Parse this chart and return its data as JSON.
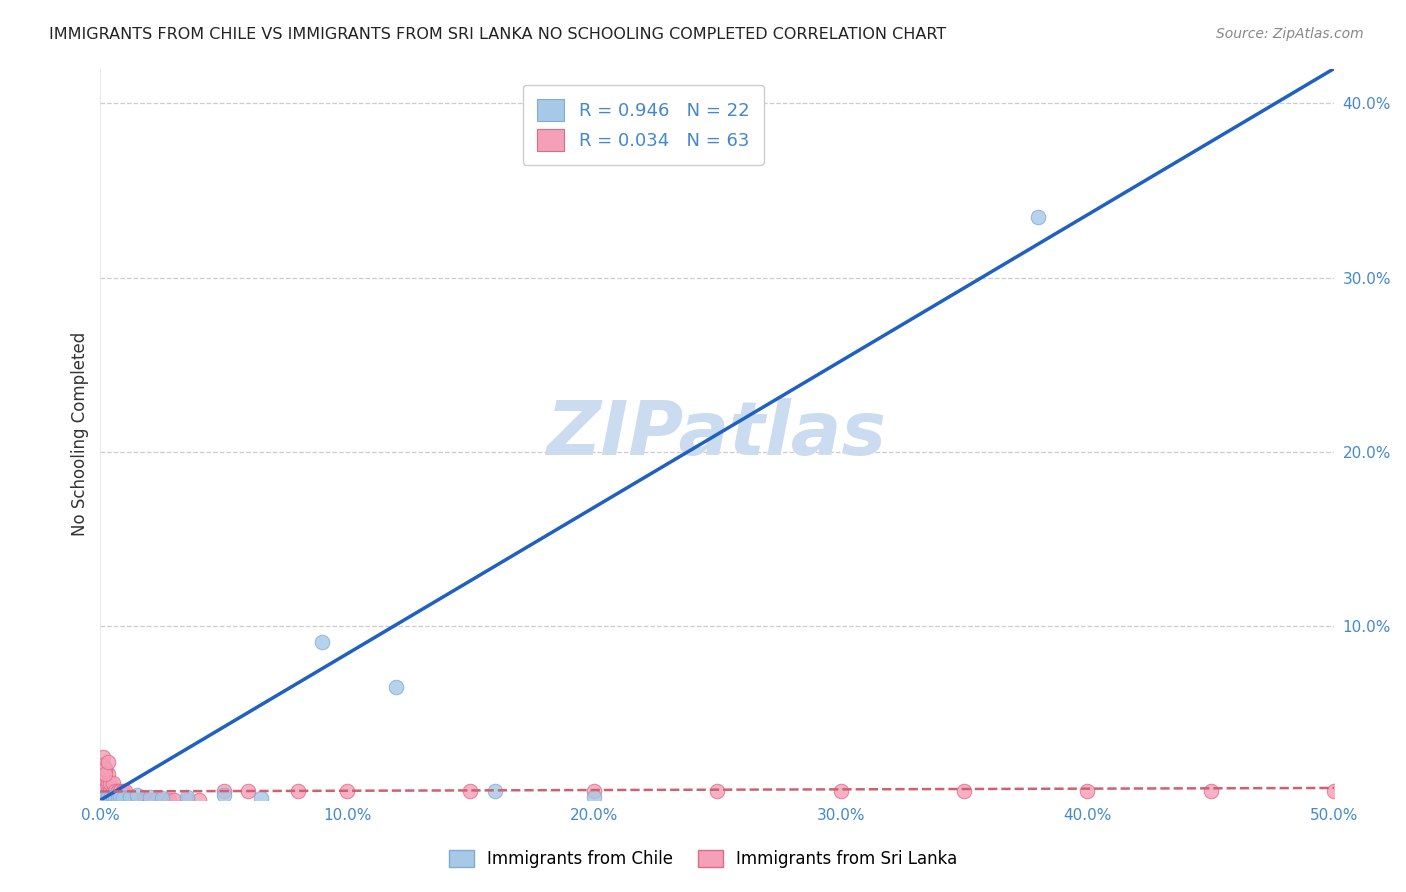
{
  "title": "IMMIGRANTS FROM CHILE VS IMMIGRANTS FROM SRI LANKA NO SCHOOLING COMPLETED CORRELATION CHART",
  "source": "Source: ZipAtlas.com",
  "ylabel": "No Schooling Completed",
  "xlim": [
    0.0,
    0.5
  ],
  "ylim": [
    0.0,
    0.42
  ],
  "xtick_values": [
    0.0,
    0.1,
    0.2,
    0.3,
    0.4,
    0.5
  ],
  "ytick_values": [
    0.1,
    0.2,
    0.3,
    0.4
  ],
  "chile_color": "#a8c8e8",
  "chile_edge_color": "#80aad0",
  "srilanka_color": "#f4a0b8",
  "srilanka_edge_color": "#e06888",
  "chile_R": 0.946,
  "chile_N": 22,
  "srilanka_R": 0.034,
  "srilanka_N": 63,
  "chile_line_color": "#2060c0",
  "srilanka_line_color": "#d06070",
  "watermark": "ZIPatlas",
  "watermark_color": "#ccdcf0",
  "legend_label_chile": "Immigrants from Chile",
  "legend_label_srilanka": "Immigrants from Sri Lanka",
  "tick_color": "#4488cc",
  "chile_x": [
    0.001,
    0.002,
    0.003,
    0.003,
    0.004,
    0.005,
    0.006,
    0.007,
    0.008,
    0.009,
    0.012,
    0.015,
    0.02,
    0.025,
    0.035,
    0.05,
    0.065,
    0.09,
    0.12,
    0.16,
    0.2,
    0.38
  ],
  "chile_y": [
    0.001,
    0.001,
    0.001,
    0.002,
    0.001,
    0.002,
    0.001,
    0.001,
    0.002,
    0.001,
    0.002,
    0.003,
    0.002,
    0.001,
    0.002,
    0.003,
    0.001,
    0.091,
    0.065,
    0.005,
    0.002,
    0.335
  ],
  "srilanka_x": [
    0.001,
    0.001,
    0.001,
    0.001,
    0.001,
    0.002,
    0.002,
    0.002,
    0.002,
    0.002,
    0.003,
    0.003,
    0.003,
    0.003,
    0.004,
    0.004,
    0.004,
    0.005,
    0.005,
    0.005,
    0.006,
    0.006,
    0.007,
    0.007,
    0.008,
    0.008,
    0.009,
    0.009,
    0.01,
    0.01,
    0.011,
    0.012,
    0.013,
    0.014,
    0.015,
    0.016,
    0.017,
    0.018,
    0.019,
    0.02,
    0.022,
    0.025,
    0.028,
    0.03,
    0.035,
    0.04,
    0.05,
    0.06,
    0.08,
    0.1,
    0.15,
    0.2,
    0.25,
    0.3,
    0.35,
    0.4,
    0.45,
    0.5,
    0.001,
    0.001,
    0.002,
    0.002,
    0.003
  ],
  "srilanka_y": [
    0.0,
    0.005,
    0.01,
    0.015,
    0.02,
    0.0,
    0.005,
    0.008,
    0.012,
    0.018,
    0.0,
    0.005,
    0.01,
    0.015,
    0.0,
    0.005,
    0.01,
    0.0,
    0.005,
    0.01,
    0.0,
    0.005,
    0.0,
    0.005,
    0.0,
    0.005,
    0.0,
    0.005,
    0.0,
    0.005,
    0.0,
    0.0,
    0.0,
    0.0,
    0.0,
    0.0,
    0.0,
    0.0,
    0.0,
    0.0,
    0.0,
    0.0,
    0.0,
    0.0,
    0.0,
    0.0,
    0.005,
    0.005,
    0.005,
    0.005,
    0.005,
    0.005,
    0.005,
    0.005,
    0.005,
    0.005,
    0.005,
    0.005,
    0.025,
    0.02,
    0.018,
    0.015,
    0.022
  ],
  "chile_slope": 0.84,
  "chile_intercept": 0.0,
  "srilanka_slope": 0.004,
  "srilanka_intercept": 0.005
}
